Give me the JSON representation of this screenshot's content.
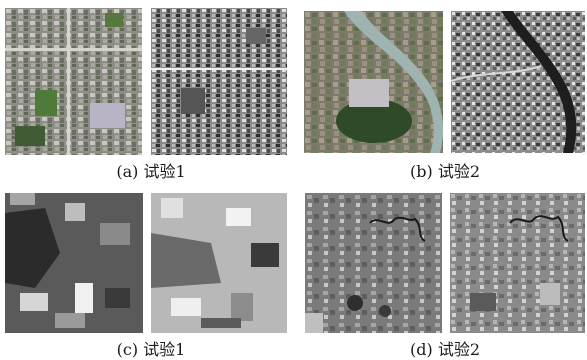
{
  "figure": {
    "panels": [
      {
        "caption": "(a) 试验1",
        "images": [
          "optical-urban-color",
          "sar-urban-gray"
        ]
      },
      {
        "caption": "(b) 试验2",
        "images": [
          "optical-river-color",
          "sar-river-gray"
        ]
      },
      {
        "caption": "(c) 试验1",
        "images": [
          "optical-rural-gray-dark",
          "sar-rural-gray-bright"
        ]
      },
      {
        "caption": "(d) 试验2",
        "images": [
          "optical-plain-gray",
          "sar-plain-gray"
        ]
      }
    ]
  }
}
